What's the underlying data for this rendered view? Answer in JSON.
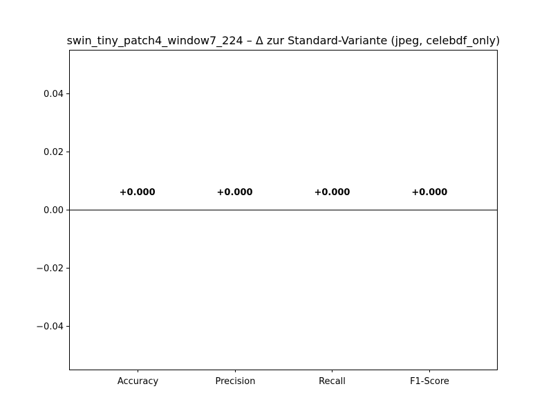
{
  "chart_data": {
    "type": "bar",
    "title": "swin_tiny_patch4_window7_224 – Δ zur Standard-Variante (jpeg, celebdf_only)",
    "xlabel": "",
    "ylabel": "",
    "categories": [
      "Accuracy",
      "Precision",
      "Recall",
      "F1-Score"
    ],
    "values": [
      0.0,
      0.0,
      0.0,
      0.0
    ],
    "data_labels": [
      "+0.000",
      "+0.000",
      "+0.000",
      "+0.000"
    ],
    "ylim": [
      -0.055,
      0.055
    ],
    "yticks": [
      0.04,
      0.02,
      0.0,
      -0.02,
      -0.04
    ],
    "ytick_labels": [
      "0.04",
      "0.02",
      "0.00",
      "−0.02",
      "−0.04"
    ],
    "zero_line": true,
    "grid": false,
    "legend": "none",
    "colors": {
      "axes": "#000000",
      "bars": "#1f77b4",
      "background": "#ffffff"
    }
  }
}
